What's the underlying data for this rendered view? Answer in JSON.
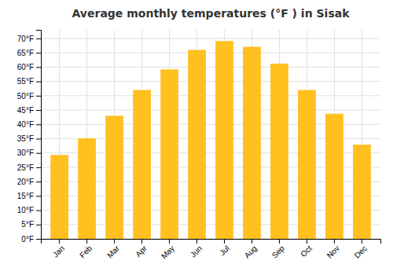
{
  "chart_data": {
    "type": "bar",
    "title": "Average monthly temperatures (°F ) in Sisak",
    "categories": [
      "Jan",
      "Feb",
      "Mar",
      "Apr",
      "May",
      "Jun",
      "Jul",
      "Aug",
      "Sep",
      "Oct",
      "Nov",
      "Dec"
    ],
    "values": [
      29.3,
      35.1,
      43.0,
      52.0,
      59.2,
      66.0,
      69.1,
      67.1,
      61.2,
      52.0,
      43.7,
      32.9
    ],
    "color": "#FFC020",
    "ylim": [
      0,
      73
    ],
    "yticks": [
      {
        "value": 0,
        "label": "0°F"
      },
      {
        "value": 5,
        "label": "5°F"
      },
      {
        "value": 10,
        "label": "10°F"
      },
      {
        "value": 15,
        "label": "15°F"
      },
      {
        "value": 20,
        "label": "20°F"
      },
      {
        "value": 25,
        "label": "25°F"
      },
      {
        "value": 30,
        "label": "30°F"
      },
      {
        "value": 35,
        "label": "35°F"
      },
      {
        "value": 40,
        "label": "40°F"
      },
      {
        "value": 45,
        "label": "45°F"
      },
      {
        "value": 50,
        "label": "50°F"
      },
      {
        "value": 55,
        "label": "55°F"
      },
      {
        "value": 60,
        "label": "60°F"
      },
      {
        "value": 65,
        "label": "65°F"
      },
      {
        "value": 70,
        "label": "70°F"
      }
    ],
    "grid": true
  }
}
